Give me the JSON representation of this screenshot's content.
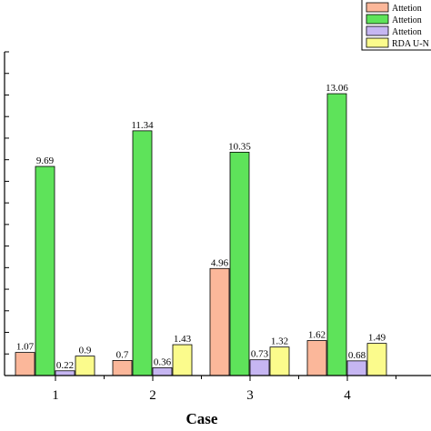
{
  "chart_data": {
    "type": "bar",
    "xlabel": "Case",
    "ylabel": "",
    "categories": [
      "1",
      "2",
      "3",
      "4"
    ],
    "ylim": [
      0,
      15
    ],
    "legend_position": "top-right",
    "grid": false,
    "series": [
      {
        "name": "Attetion",
        "color": "#fbb79a",
        "values": [
          1.07,
          0.7,
          4.96,
          1.62
        ]
      },
      {
        "name": "Attetion",
        "color": "#5ee35a",
        "values": [
          9.69,
          11.34,
          10.35,
          13.06
        ]
      },
      {
        "name": "Attetion",
        "color": "#c6b6f2",
        "values": [
          0.22,
          0.36,
          0.73,
          0.68
        ]
      },
      {
        "name": "RDA U-N",
        "color": "#fbfb8c",
        "values": [
          0.9,
          1.43,
          1.32,
          1.49
        ]
      }
    ],
    "data_labels": [
      [
        "1.07",
        "9.69",
        "0.22",
        "0.9"
      ],
      [
        "0.7",
        "11.34",
        "0.36",
        "1.43"
      ],
      [
        "4.96",
        "10.35",
        "0.73",
        "1.32"
      ],
      [
        "1.62",
        "13.06",
        "0.68",
        "1.49"
      ]
    ]
  }
}
